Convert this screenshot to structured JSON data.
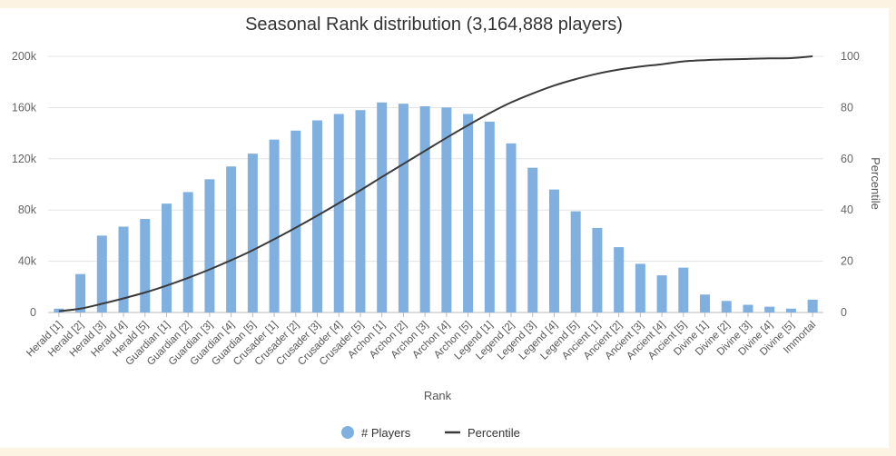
{
  "chart_data": {
    "type": "bar",
    "title": "Seasonal Rank distribution (3,164,888 players)",
    "xlabel": "Rank",
    "ylabel": "",
    "y2label": "Percentile",
    "ylim": [
      0,
      200000
    ],
    "y2lim": [
      0,
      100
    ],
    "yticks": [
      "0",
      "40k",
      "80k",
      "120k",
      "160k",
      "200k"
    ],
    "y2ticks": [
      "0",
      "20",
      "40",
      "60",
      "80",
      "100"
    ],
    "grid": true,
    "legend_position": "bottom",
    "colors": {
      "bars": "#7fb0e0",
      "line": "#3a3a3a"
    },
    "categories": [
      "Herald [1]",
      "Herald [2]",
      "Herald [3]",
      "Herald [4]",
      "Herald [5]",
      "Guardian [1]",
      "Guardian [2]",
      "Guardian [3]",
      "Guardian [4]",
      "Guardian [5]",
      "Crusader [1]",
      "Crusader [2]",
      "Crusader [3]",
      "Crusader [4]",
      "Crusader [5]",
      "Archon [1]",
      "Archon [2]",
      "Archon [3]",
      "Archon [4]",
      "Archon [5]",
      "Legend [1]",
      "Legend [2]",
      "Legend [3]",
      "Legend [4]",
      "Legend [5]",
      "Ancient [1]",
      "Ancient [2]",
      "Ancient [3]",
      "Ancient [4]",
      "Ancient [5]",
      "Divine [1]",
      "Divine [2]",
      "Divine [3]",
      "Divine [4]",
      "Divine [5]",
      "Immortal"
    ],
    "series": [
      {
        "name": "# Players",
        "type": "bar",
        "axis": "left",
        "values": [
          3000,
          30000,
          60000,
          67000,
          73000,
          85000,
          94000,
          104000,
          114000,
          124000,
          135000,
          142000,
          150000,
          155000,
          158000,
          164000,
          163000,
          161000,
          160000,
          155000,
          149000,
          132000,
          113000,
          96000,
          79000,
          66000,
          51000,
          38000,
          29000,
          35000,
          14000,
          9000,
          6000,
          4500,
          3000,
          10000
        ]
      },
      {
        "name": "Percentile",
        "type": "line",
        "axis": "right",
        "values": [
          0.5,
          1.5,
          3.4,
          5.5,
          7.8,
          10.5,
          13.5,
          16.8,
          20.4,
          24.3,
          28.6,
          33.1,
          37.8,
          42.7,
          47.7,
          52.9,
          58.0,
          63.1,
          68.2,
          73.1,
          77.8,
          82.0,
          85.5,
          88.6,
          91.1,
          93.2,
          94.8,
          96.0,
          96.9,
          98.0,
          98.5,
          98.8,
          99.0,
          99.2,
          99.3,
          100
        ]
      }
    ]
  }
}
